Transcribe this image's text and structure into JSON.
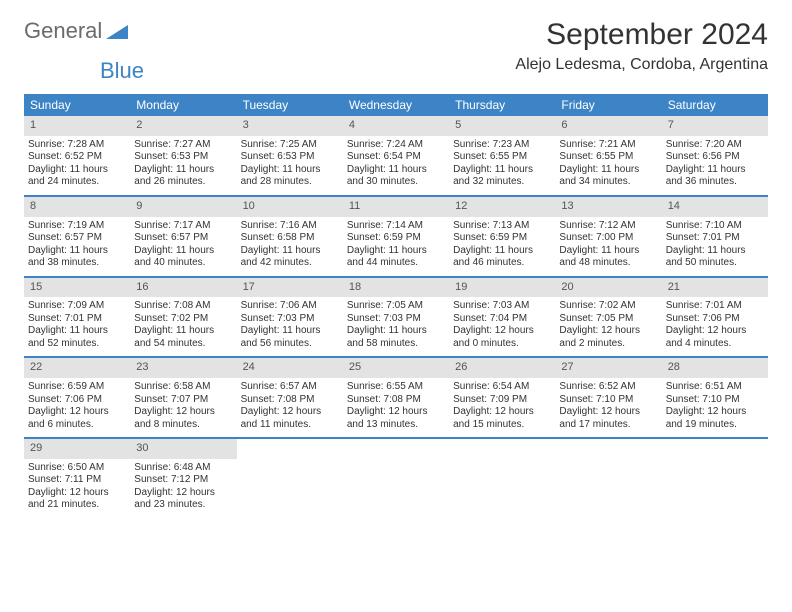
{
  "logo": {
    "text1": "General",
    "text2": "Blue"
  },
  "title": "September 2024",
  "subtitle": "Alejo Ledesma, Cordoba, Argentina",
  "colors": {
    "header_bg": "#3d84c6",
    "daynum_bg": "#e3e3e3",
    "text": "#333333",
    "logo_gray": "#6b6b6b",
    "logo_blue": "#3d84c6",
    "week_border": "#3d84c6"
  },
  "weekdays": [
    "Sunday",
    "Monday",
    "Tuesday",
    "Wednesday",
    "Thursday",
    "Friday",
    "Saturday"
  ],
  "weeks": [
    [
      {
        "n": "1",
        "sr": "Sunrise: 7:28 AM",
        "ss": "Sunset: 6:52 PM",
        "dl": "Daylight: 11 hours and 24 minutes."
      },
      {
        "n": "2",
        "sr": "Sunrise: 7:27 AM",
        "ss": "Sunset: 6:53 PM",
        "dl": "Daylight: 11 hours and 26 minutes."
      },
      {
        "n": "3",
        "sr": "Sunrise: 7:25 AM",
        "ss": "Sunset: 6:53 PM",
        "dl": "Daylight: 11 hours and 28 minutes."
      },
      {
        "n": "4",
        "sr": "Sunrise: 7:24 AM",
        "ss": "Sunset: 6:54 PM",
        "dl": "Daylight: 11 hours and 30 minutes."
      },
      {
        "n": "5",
        "sr": "Sunrise: 7:23 AM",
        "ss": "Sunset: 6:55 PM",
        "dl": "Daylight: 11 hours and 32 minutes."
      },
      {
        "n": "6",
        "sr": "Sunrise: 7:21 AM",
        "ss": "Sunset: 6:55 PM",
        "dl": "Daylight: 11 hours and 34 minutes."
      },
      {
        "n": "7",
        "sr": "Sunrise: 7:20 AM",
        "ss": "Sunset: 6:56 PM",
        "dl": "Daylight: 11 hours and 36 minutes."
      }
    ],
    [
      {
        "n": "8",
        "sr": "Sunrise: 7:19 AM",
        "ss": "Sunset: 6:57 PM",
        "dl": "Daylight: 11 hours and 38 minutes."
      },
      {
        "n": "9",
        "sr": "Sunrise: 7:17 AM",
        "ss": "Sunset: 6:57 PM",
        "dl": "Daylight: 11 hours and 40 minutes."
      },
      {
        "n": "10",
        "sr": "Sunrise: 7:16 AM",
        "ss": "Sunset: 6:58 PM",
        "dl": "Daylight: 11 hours and 42 minutes."
      },
      {
        "n": "11",
        "sr": "Sunrise: 7:14 AM",
        "ss": "Sunset: 6:59 PM",
        "dl": "Daylight: 11 hours and 44 minutes."
      },
      {
        "n": "12",
        "sr": "Sunrise: 7:13 AM",
        "ss": "Sunset: 6:59 PM",
        "dl": "Daylight: 11 hours and 46 minutes."
      },
      {
        "n": "13",
        "sr": "Sunrise: 7:12 AM",
        "ss": "Sunset: 7:00 PM",
        "dl": "Daylight: 11 hours and 48 minutes."
      },
      {
        "n": "14",
        "sr": "Sunrise: 7:10 AM",
        "ss": "Sunset: 7:01 PM",
        "dl": "Daylight: 11 hours and 50 minutes."
      }
    ],
    [
      {
        "n": "15",
        "sr": "Sunrise: 7:09 AM",
        "ss": "Sunset: 7:01 PM",
        "dl": "Daylight: 11 hours and 52 minutes."
      },
      {
        "n": "16",
        "sr": "Sunrise: 7:08 AM",
        "ss": "Sunset: 7:02 PM",
        "dl": "Daylight: 11 hours and 54 minutes."
      },
      {
        "n": "17",
        "sr": "Sunrise: 7:06 AM",
        "ss": "Sunset: 7:03 PM",
        "dl": "Daylight: 11 hours and 56 minutes."
      },
      {
        "n": "18",
        "sr": "Sunrise: 7:05 AM",
        "ss": "Sunset: 7:03 PM",
        "dl": "Daylight: 11 hours and 58 minutes."
      },
      {
        "n": "19",
        "sr": "Sunrise: 7:03 AM",
        "ss": "Sunset: 7:04 PM",
        "dl": "Daylight: 12 hours and 0 minutes."
      },
      {
        "n": "20",
        "sr": "Sunrise: 7:02 AM",
        "ss": "Sunset: 7:05 PM",
        "dl": "Daylight: 12 hours and 2 minutes."
      },
      {
        "n": "21",
        "sr": "Sunrise: 7:01 AM",
        "ss": "Sunset: 7:06 PM",
        "dl": "Daylight: 12 hours and 4 minutes."
      }
    ],
    [
      {
        "n": "22",
        "sr": "Sunrise: 6:59 AM",
        "ss": "Sunset: 7:06 PM",
        "dl": "Daylight: 12 hours and 6 minutes."
      },
      {
        "n": "23",
        "sr": "Sunrise: 6:58 AM",
        "ss": "Sunset: 7:07 PM",
        "dl": "Daylight: 12 hours and 8 minutes."
      },
      {
        "n": "24",
        "sr": "Sunrise: 6:57 AM",
        "ss": "Sunset: 7:08 PM",
        "dl": "Daylight: 12 hours and 11 minutes."
      },
      {
        "n": "25",
        "sr": "Sunrise: 6:55 AM",
        "ss": "Sunset: 7:08 PM",
        "dl": "Daylight: 12 hours and 13 minutes."
      },
      {
        "n": "26",
        "sr": "Sunrise: 6:54 AM",
        "ss": "Sunset: 7:09 PM",
        "dl": "Daylight: 12 hours and 15 minutes."
      },
      {
        "n": "27",
        "sr": "Sunrise: 6:52 AM",
        "ss": "Sunset: 7:10 PM",
        "dl": "Daylight: 12 hours and 17 minutes."
      },
      {
        "n": "28",
        "sr": "Sunrise: 6:51 AM",
        "ss": "Sunset: 7:10 PM",
        "dl": "Daylight: 12 hours and 19 minutes."
      }
    ],
    [
      {
        "n": "29",
        "sr": "Sunrise: 6:50 AM",
        "ss": "Sunset: 7:11 PM",
        "dl": "Daylight: 12 hours and 21 minutes."
      },
      {
        "n": "30",
        "sr": "Sunrise: 6:48 AM",
        "ss": "Sunset: 7:12 PM",
        "dl": "Daylight: 12 hours and 23 minutes."
      },
      {
        "empty": true
      },
      {
        "empty": true
      },
      {
        "empty": true
      },
      {
        "empty": true
      },
      {
        "empty": true
      }
    ]
  ]
}
